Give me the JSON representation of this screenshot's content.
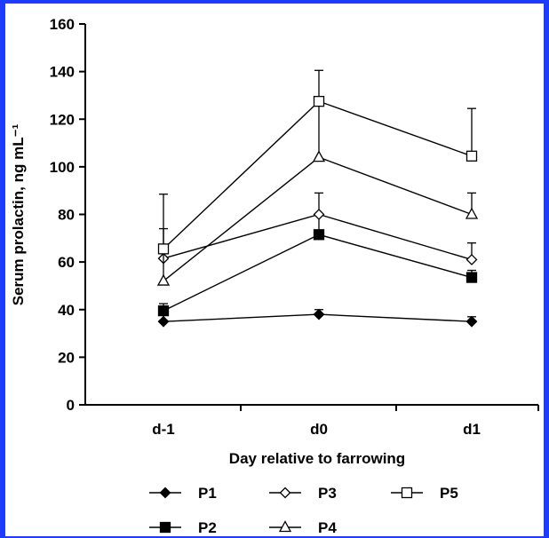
{
  "chart_data": {
    "type": "line",
    "title": "",
    "xlabel": "Day relative to farrowing",
    "ylabel": "Serum prolactin, ng mL⁻¹",
    "categories": [
      "d-1",
      "d0",
      "d1"
    ],
    "ylim": [
      0,
      160
    ],
    "yticks": [
      0,
      20,
      40,
      60,
      80,
      100,
      120,
      140,
      160
    ],
    "grid": false,
    "legend_position": "bottom",
    "series": [
      {
        "name": "P1",
        "marker": "filled-diamond",
        "values": [
          35,
          38,
          35
        ],
        "error": [
          3,
          2,
          2
        ]
      },
      {
        "name": "P2",
        "marker": "filled-square",
        "values": [
          39.5,
          71.5,
          53.5
        ],
        "error": [
          3,
          8,
          3
        ]
      },
      {
        "name": "P3",
        "marker": "open-diamond",
        "values": [
          61.5,
          80,
          61
        ],
        "error": [
          3,
          9,
          7
        ]
      },
      {
        "name": "P4",
        "marker": "open-triangle",
        "values": [
          52,
          104,
          80
        ],
        "error": [
          22,
          24,
          9
        ]
      },
      {
        "name": "P5",
        "marker": "open-square",
        "values": [
          65.5,
          127.5,
          104.5
        ],
        "error": [
          23,
          13,
          20
        ]
      }
    ]
  }
}
